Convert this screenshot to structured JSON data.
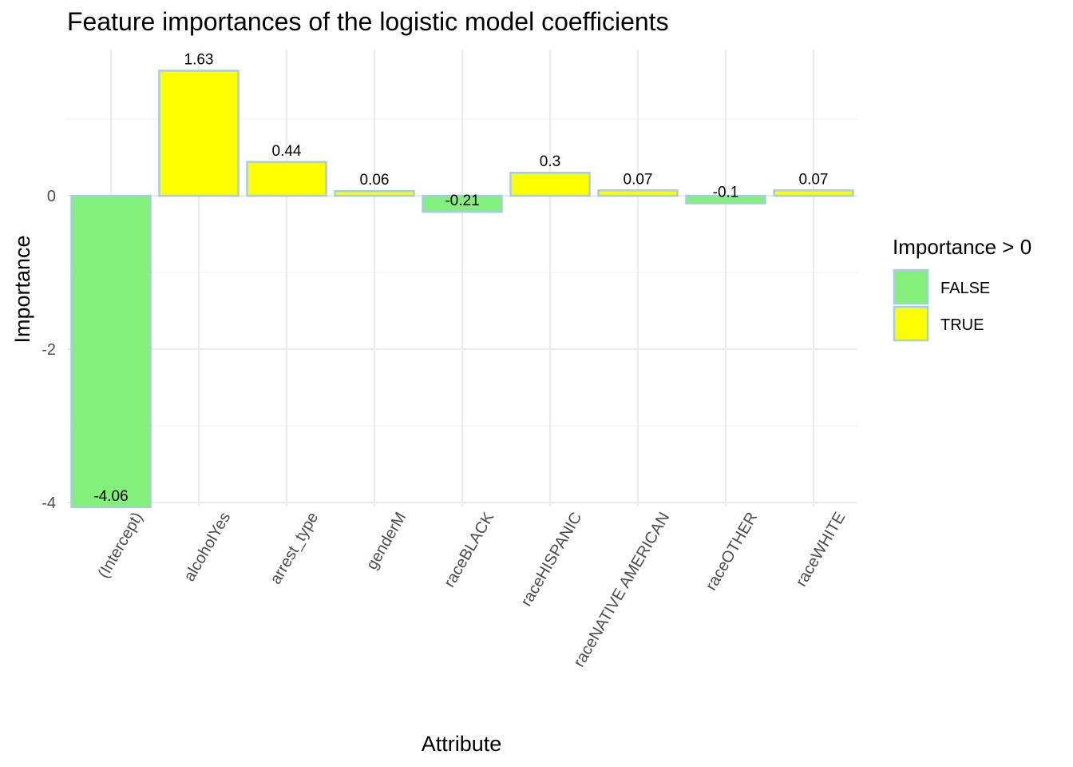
{
  "chart_data": {
    "type": "bar",
    "title": "Feature importances of the logistic model coefficients",
    "xlabel": "Attribute",
    "ylabel": "Importance",
    "categories": [
      "(Intercept)",
      "alcoholYes",
      "arrest_type",
      "genderM",
      "raceBLACK",
      "raceHISPANIC",
      "raceNATIVE AMERICAN",
      "raceOTHER",
      "raceWHITE"
    ],
    "values": [
      -4.06,
      1.63,
      0.44,
      0.06,
      -0.21,
      0.3,
      0.07,
      -0.1,
      0.07
    ],
    "value_labels": [
      "-4.06",
      "1.63",
      "0.44",
      "0.06",
      "-0.21",
      "0.3",
      "0.07",
      "-0.1",
      "0.07"
    ],
    "yticks": [
      0,
      -2,
      -4
    ],
    "ytick_labels": [
      "0",
      "-2",
      "-4"
    ],
    "ylim": [
      -4.06,
      1.63
    ],
    "grid": true,
    "legend": {
      "title": "Importance > 0",
      "position": "right",
      "entries": [
        {
          "label": "FALSE",
          "color": "#84f07c"
        },
        {
          "label": "TRUE",
          "color": "#ffff00"
        }
      ]
    },
    "colors": {
      "negative": "#84f07c",
      "positive": "#ffff00",
      "bar_outline": "#a6cee3"
    }
  }
}
